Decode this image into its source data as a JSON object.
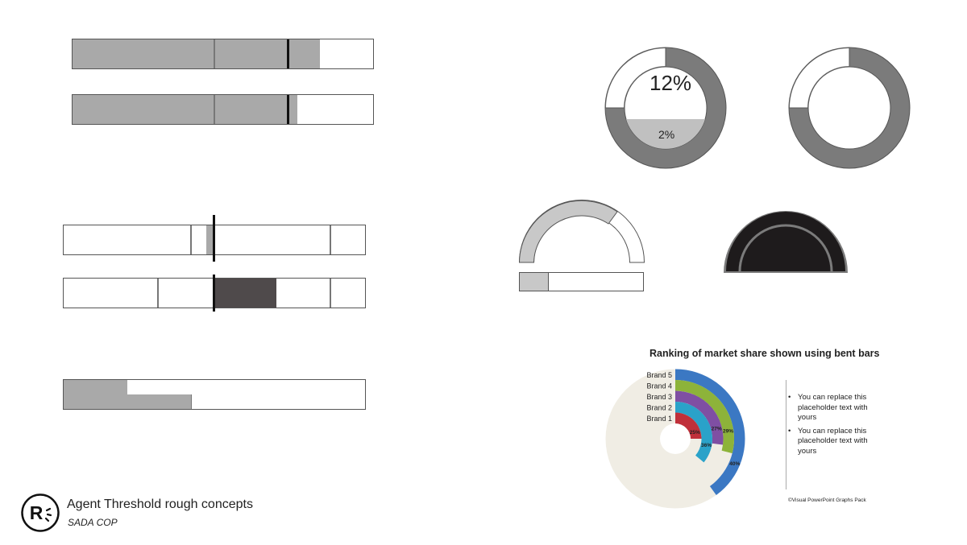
{
  "footer": {
    "title": "Agent Threshold rough concepts",
    "subtitle": "SADA COP",
    "logo_letter": "R"
  },
  "donut_concept": {
    "main_label": "12%",
    "inner_label": "2%"
  },
  "bent_bar_card": {
    "title": "Ranking of market share shown using bent bars",
    "bullets": [
      "You can replace this placeholder text with yours",
      "You can replace this placeholder text with yours"
    ],
    "credit": "©Visual PowerPoint Graphs Pack"
  },
  "colors": {
    "gray_fill": "#a9a9a9",
    "dark_ring": "#7b7b7b",
    "light_gray": "#c8c8c8",
    "dark_fill": "#4f4a4b",
    "black_gauge": "#1e1b1c"
  },
  "chart_data": {
    "type": "bent bar",
    "title": "Ranking of market share shown using bent bars",
    "categories": [
      "Brand 5",
      "Brand 4",
      "Brand 3",
      "Brand 2",
      "Brand 1"
    ],
    "values": [
      40,
      29,
      27,
      36,
      25
    ],
    "value_labels": [
      "40%",
      "29%",
      "27%",
      "36%",
      "25%"
    ],
    "series_colors": [
      "#3b78c3",
      "#8db33a",
      "#7f4fa3",
      "#2aa2c9",
      "#c0303a"
    ]
  }
}
